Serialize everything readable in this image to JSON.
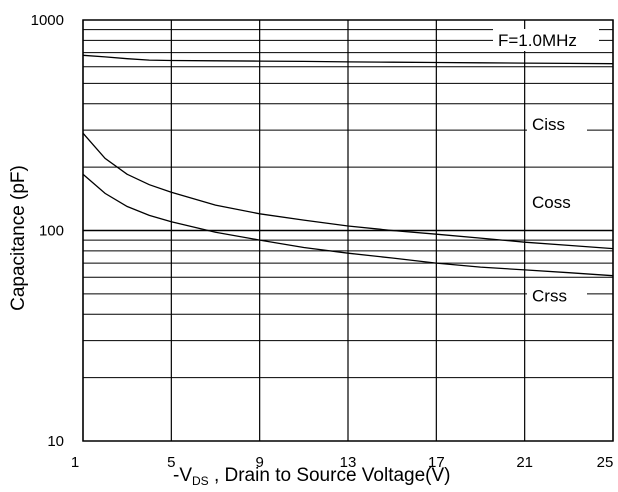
{
  "chart_data": {
    "type": "line",
    "xscale": "linear",
    "yscale": "log",
    "xlim": [
      1,
      25
    ],
    "ylim": [
      10,
      1000
    ],
    "xticks": [
      1,
      5,
      9,
      13,
      17,
      21,
      25
    ],
    "yticks": [
      10,
      100,
      1000
    ],
    "xtick_labels": [
      "1",
      "5",
      "9",
      "13",
      "17",
      "21",
      "25"
    ],
    "ytick_labels": [
      "10",
      "100",
      "1000"
    ],
    "xlabel_prefix": "-V",
    "xlabel_sub": "DS",
    "xlabel_rest": " , Drain to Source Voltage(V)",
    "ylabel": "Capacitance (pF)",
    "annotation": "F=1.0MHz",
    "grid": true,
    "series": [
      {
        "name": "Ciss",
        "x": [
          1,
          2,
          3,
          4,
          5,
          7,
          9,
          11,
          13,
          15,
          17,
          19,
          21,
          23,
          25
        ],
        "y": [
          680,
          668,
          655,
          645,
          642,
          640,
          638,
          636,
          632,
          630,
          628,
          626,
          624,
          622,
          620
        ]
      },
      {
        "name": "Coss",
        "x": [
          1,
          2,
          3,
          4,
          5,
          7,
          9,
          11,
          13,
          15,
          17,
          19,
          21,
          23,
          25
        ],
        "y": [
          290,
          220,
          185,
          165,
          152,
          132,
          120,
          112,
          105,
          100,
          96,
          92,
          88,
          85,
          82
        ]
      },
      {
        "name": "Crss",
        "x": [
          1,
          2,
          3,
          4,
          5,
          7,
          9,
          11,
          13,
          15,
          17,
          19,
          21,
          23,
          25
        ],
        "y": [
          185,
          150,
          130,
          118,
          110,
          98,
          90,
          83,
          78,
          74,
          70,
          67,
          65,
          63,
          61
        ]
      }
    ]
  }
}
